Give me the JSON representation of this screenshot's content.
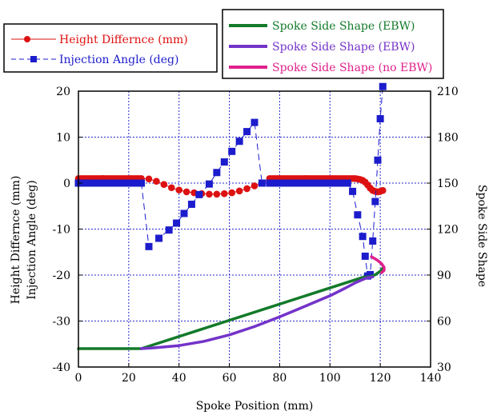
{
  "chart_data": {
    "type": "line",
    "xlabel": "Spoke Position (mm)",
    "ylabel_left": [
      "Height Differnce (mm)",
      "Injection Angle (deg)"
    ],
    "ylabel_right": "Spoke Side Shape",
    "xlim": [
      0,
      140
    ],
    "ylim_left": [
      -40,
      20
    ],
    "ylim_right": [
      30,
      210
    ],
    "x_ticks": [
      "0",
      "20",
      "40",
      "60",
      "80",
      "100",
      "120",
      "140"
    ],
    "y_left_ticks": [
      "20",
      "10",
      "0",
      "-10",
      "-20",
      "-30",
      "-40"
    ],
    "y_right_ticks": [
      "210",
      "180",
      "150",
      "120",
      "90",
      "60",
      "30"
    ],
    "grid": true,
    "legend_left": [
      {
        "name": "Height Differnce (mm)",
        "color": "#dd1111",
        "marker": "circle"
      },
      {
        "name": "Injection Angle (deg)",
        "color": "#1c1ccc",
        "marker": "square"
      }
    ],
    "legend_right": [
      {
        "name": "Spoke Side Shape (EBW)",
        "color": "#137a2a"
      },
      {
        "name": "Spoke Side Shape (EBW)",
        "color": "#7433c9"
      },
      {
        "name": "Spoke Side Shape (no EBW)",
        "color": "#e0208a"
      }
    ],
    "series": [
      {
        "name": "Height Differnce (mm)",
        "axis": "left",
        "color": "#dd1111",
        "x": [
          0,
          1,
          2,
          3,
          4,
          5,
          6,
          7,
          8,
          9,
          10,
          11,
          12,
          13,
          14,
          15,
          16,
          17,
          18,
          19,
          20,
          21,
          22,
          23,
          24,
          25,
          28,
          31,
          34,
          37,
          40,
          43,
          46,
          49,
          52,
          55,
          58,
          61,
          64,
          67,
          70,
          73,
          76,
          77,
          78,
          79,
          80,
          81,
          82,
          83,
          84,
          85,
          86,
          87,
          88,
          89,
          90,
          91,
          92,
          93,
          94,
          95,
          96,
          97,
          98,
          99,
          100,
          101,
          102,
          103,
          104,
          105,
          106,
          107,
          108,
          109,
          110,
          111,
          112,
          113,
          114,
          115,
          116,
          117,
          118,
          119,
          120,
          121
        ],
        "y": [
          1,
          1,
          1,
          1,
          1,
          1,
          1,
          1,
          1,
          1,
          1,
          1,
          1,
          1,
          1,
          1,
          1,
          1,
          1,
          1,
          1,
          1,
          1,
          1,
          1,
          1,
          0.9,
          0.4,
          -0.3,
          -1,
          -1.5,
          -1.9,
          -2.1,
          -2.3,
          -2.4,
          -2.4,
          -2.3,
          -2.1,
          -1.7,
          -1.2,
          -0.6,
          0,
          1,
          1,
          1,
          1,
          1,
          1,
          1,
          1,
          1,
          1,
          1,
          1,
          1,
          1,
          1,
          1,
          1,
          1,
          1,
          1,
          1,
          1,
          1,
          1,
          1,
          1,
          1,
          1,
          1,
          1,
          1,
          1,
          1,
          1,
          1,
          0.9,
          0.8,
          0.6,
          0.2,
          -0.4,
          -1.1,
          -1.6,
          -1.8,
          -1.9,
          -1.8,
          -1.6
        ]
      },
      {
        "name": "Injection Angle (deg)",
        "axis": "left",
        "color": "#1c1ccc",
        "x": [
          0,
          1,
          2,
          3,
          4,
          5,
          6,
          7,
          8,
          9,
          10,
          11,
          12,
          13,
          14,
          15,
          16,
          17,
          18,
          19,
          20,
          21,
          22,
          23,
          24,
          25,
          28,
          32,
          36,
          39,
          42,
          45,
          48,
          52,
          55,
          58,
          61,
          64,
          67,
          70,
          73,
          76,
          77,
          78,
          79,
          80,
          81,
          82,
          83,
          84,
          85,
          86,
          87,
          88,
          89,
          90,
          91,
          92,
          93,
          94,
          95,
          96,
          97,
          98,
          99,
          100,
          101,
          102,
          103,
          104,
          105,
          106,
          107,
          109,
          111,
          113,
          114,
          115,
          116,
          117,
          118,
          119,
          120,
          121
        ],
        "y": [
          0,
          0,
          0,
          0,
          0,
          0,
          0,
          0,
          0,
          0,
          0,
          0,
          0,
          0,
          0,
          0,
          0,
          0,
          0,
          0,
          0,
          0,
          0,
          0,
          0,
          0,
          -13.8,
          -12,
          -10.2,
          -8.7,
          -6.6,
          -4.6,
          -2.5,
          -0.2,
          2.3,
          4.6,
          6.9,
          9.1,
          11.2,
          13.2,
          0,
          0,
          0,
          0,
          0,
          0,
          0,
          0,
          0,
          0,
          0,
          0,
          0,
          0,
          0,
          0,
          0,
          0,
          0,
          0,
          0,
          0,
          0,
          0,
          0,
          0,
          0,
          0,
          0,
          0,
          0,
          0,
          0,
          -1.8,
          -6.9,
          -11.6,
          -15.9,
          -20.2,
          -19.9,
          -12.6,
          -4,
          5,
          14,
          21
        ]
      },
      {
        "name": "Spoke Side Shape (EBW)",
        "axis": "right",
        "color": "#137a2a",
        "x": [
          0,
          10,
          20,
          25,
          113,
          116,
          118,
          120,
          121
        ],
        "y": [
          42,
          42,
          42,
          42,
          88.5,
          89,
          90.2,
          92.5,
          94.5
        ]
      },
      {
        "name": "Spoke Side Shape (EBW)",
        "axis": "right",
        "color": "#7433c9",
        "x": [
          25,
          30,
          40,
          50,
          60,
          70,
          80,
          90,
          100,
          106,
          110,
          113,
          115,
          117
        ],
        "y": [
          42,
          42.5,
          44,
          46.8,
          51,
          56.4,
          62.7,
          69.6,
          76.5,
          81.4,
          84.9,
          87.1,
          88.4,
          88.8
        ]
      },
      {
        "name": "Spoke Side Shape (no EBW)",
        "axis": "right",
        "color": "#e0208a",
        "x": [
          116.5,
          117.5,
          119,
          120.5,
          121.5,
          121.5,
          120.5
        ],
        "y": [
          102,
          101,
          99.5,
          97.5,
          95,
          93,
          91.5
        ]
      }
    ]
  }
}
